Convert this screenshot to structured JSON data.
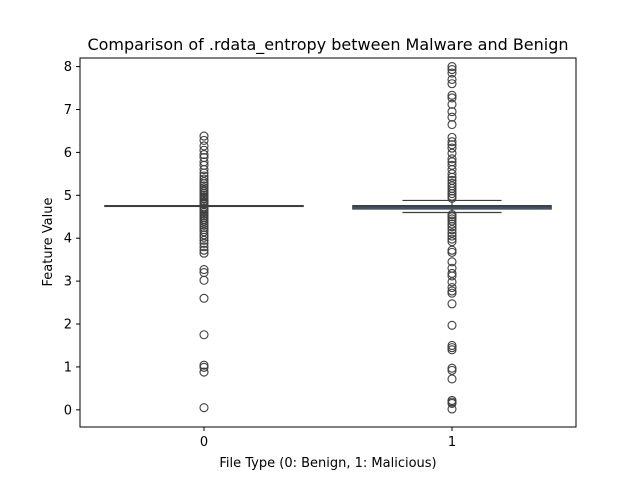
{
  "chart_data": {
    "type": "box",
    "title": "Comparison of .rdata_entropy between Malware and Benign",
    "xlabel": "File Type (0: Benign, 1: Malicious)",
    "ylabel": "Feature Value",
    "categories": [
      "0",
      "1"
    ],
    "ylim": [
      -0.4,
      8.2
    ],
    "yticks": [
      0,
      1,
      2,
      3,
      4,
      5,
      6,
      7,
      8
    ],
    "grid": false,
    "colors": {
      "box_fill": "#3b75af",
      "line": "#3f3f3f",
      "outlier_edge": "#3f3f3f"
    },
    "boxes": [
      {
        "category": "0",
        "q1": 4.74,
        "median": 4.75,
        "q3": 4.76,
        "whisker_low": 4.74,
        "whisker_high": 4.76,
        "outliers": [
          6.38,
          6.28,
          6.15,
          6.05,
          5.95,
          5.88,
          5.78,
          5.7,
          5.6,
          5.52,
          5.45,
          5.38,
          5.32,
          5.27,
          5.22,
          5.17,
          5.12,
          5.08,
          5.04,
          5.0,
          4.96,
          4.92,
          4.88,
          4.84,
          4.81,
          4.79,
          4.71,
          4.68,
          4.64,
          4.6,
          4.56,
          4.52,
          4.48,
          4.44,
          4.4,
          4.35,
          4.3,
          4.25,
          4.2,
          4.15,
          4.08,
          4.02,
          3.95,
          3.88,
          3.8,
          3.72,
          3.65,
          3.27,
          3.2,
          3.02,
          2.6,
          1.75,
          1.04,
          0.99,
          0.88,
          0.05
        ]
      },
      {
        "category": "1",
        "q1": 4.68,
        "median": 4.73,
        "q3": 4.76,
        "whisker_low": 4.6,
        "whisker_high": 4.88,
        "outliers": [
          8.0,
          7.93,
          7.85,
          7.7,
          7.6,
          7.33,
          7.27,
          7.12,
          6.95,
          6.82,
          6.65,
          6.35,
          6.25,
          6.18,
          6.1,
          5.98,
          5.85,
          5.78,
          5.7,
          5.6,
          5.5,
          5.42,
          5.35,
          5.28,
          5.22,
          5.16,
          5.1,
          5.04,
          4.98,
          4.93,
          4.55,
          4.5,
          4.45,
          4.4,
          4.33,
          4.27,
          4.2,
          4.12,
          4.05,
          3.98,
          3.92,
          3.72,
          3.67,
          3.45,
          3.3,
          3.18,
          3.12,
          2.98,
          2.85,
          2.77,
          2.72,
          2.47,
          1.97,
          1.5,
          1.45,
          1.4,
          0.97,
          0.92,
          0.72,
          0.22,
          0.18,
          0.15,
          0.02
        ]
      }
    ]
  }
}
